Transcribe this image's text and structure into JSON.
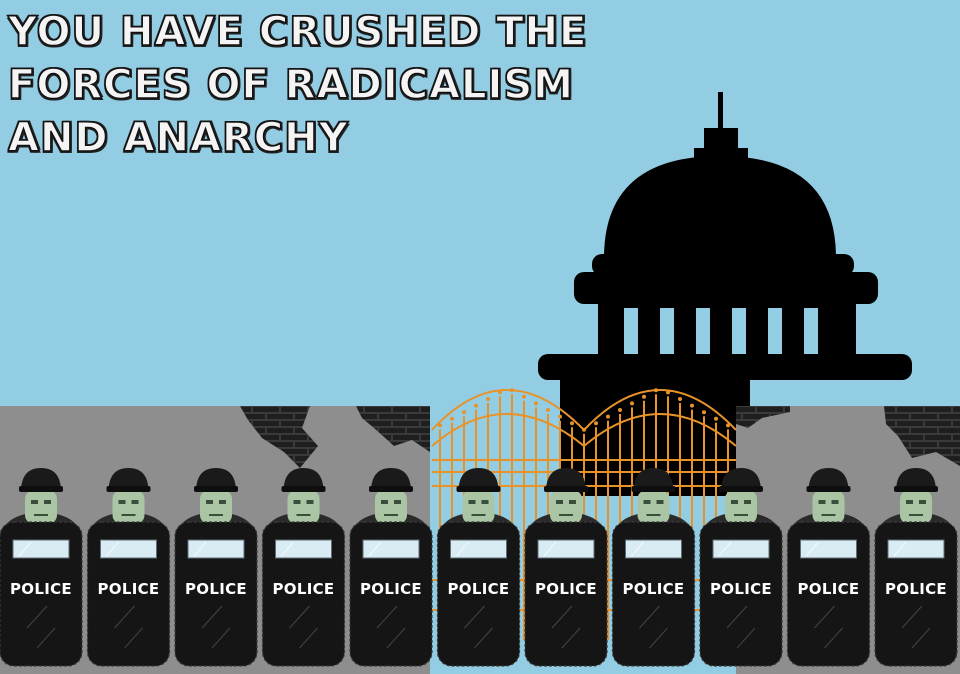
{
  "headline": {
    "lines": [
      "YOU HAVE CRUSHED THE",
      "FORCES OF RADICALISM",
      "AND ANARCHY"
    ]
  },
  "police": {
    "count": 11,
    "shield_label": "POLICE"
  },
  "colors": {
    "sky": "#93cde4",
    "wall": "#8e8e8e",
    "capitol": "#000000",
    "gate": "#e8922a",
    "shield": "#151515",
    "face": "#a9c5a4"
  }
}
